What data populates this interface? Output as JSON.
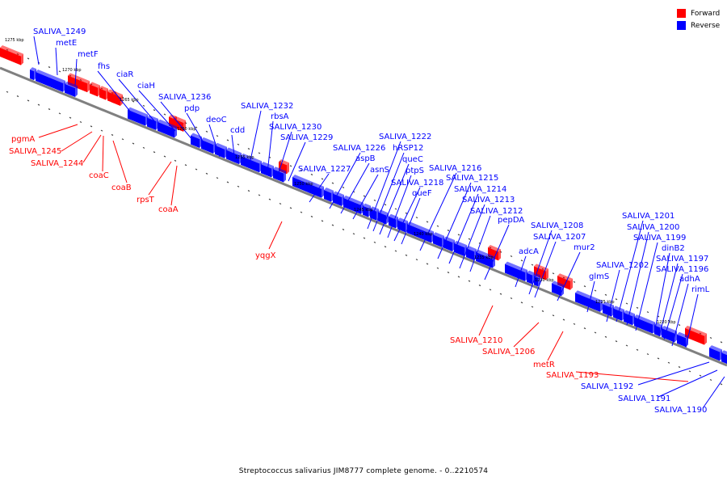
{
  "legend": {
    "items": [
      {
        "label": "Forward",
        "color": "#ff0000"
      },
      {
        "label": "Reverse",
        "color": "#0000ff"
      }
    ]
  },
  "caption": "Streptococcus salivarius JIM8777 complete genome. - 0..2210574",
  "colors": {
    "forward": "#ff0000",
    "reverse": "#0000ff",
    "backbone": "#808080"
  },
  "tick_labels": [
    "1275 kbp",
    "1270 kbp",
    "1265 kbp",
    "1260 kbp",
    "1255 kbp",
    "1250 kbp",
    "1245 kbp",
    "1240 kbp",
    "1235 kbp",
    "1230 kbp",
    "1225 kbp",
    "1220 kbp"
  ],
  "genes_forward": [
    "pgmA",
    "SALIVA_1245",
    "SALIVA_1244",
    "coaC",
    "coaB",
    "rpsT",
    "coaA",
    "yqgX",
    "SALIVA_1210",
    "SALIVA_1206",
    "metR",
    "SALIVA_1193"
  ],
  "genes_reverse": [
    "SALIVA_1249",
    "metE",
    "metF",
    "fhs",
    "ciaR",
    "ciaH",
    "SALIVA_1236",
    "pdp",
    "deoC",
    "cdd",
    "SALIVA_1232",
    "rbsA",
    "SALIVA_1230",
    "SALIVA_1229",
    "SALIVA_1227",
    "SALIVA_1226",
    "aspB",
    "asnS",
    "SALIVA_1222",
    "hRSP12",
    "queC",
    "ptpS",
    "SALIVA_1218",
    "queF",
    "SALIVA_1216",
    "SALIVA_1215",
    "SALIVA_1214",
    "SALIVA_1213",
    "SALIVA_1212",
    "pepDA",
    "adcA",
    "SALIVA_1208",
    "SALIVA_1207",
    "mur2",
    "glmS",
    "SALIVA_1202",
    "SALIVA_1201",
    "SALIVA_1200",
    "SALIVA_1199",
    "dinB2",
    "SALIVA_1197",
    "SALIVA_1196",
    "adhA",
    "rimL",
    "SALIVA_1192",
    "SALIVA_1191",
    "SALIVA_1190"
  ]
}
